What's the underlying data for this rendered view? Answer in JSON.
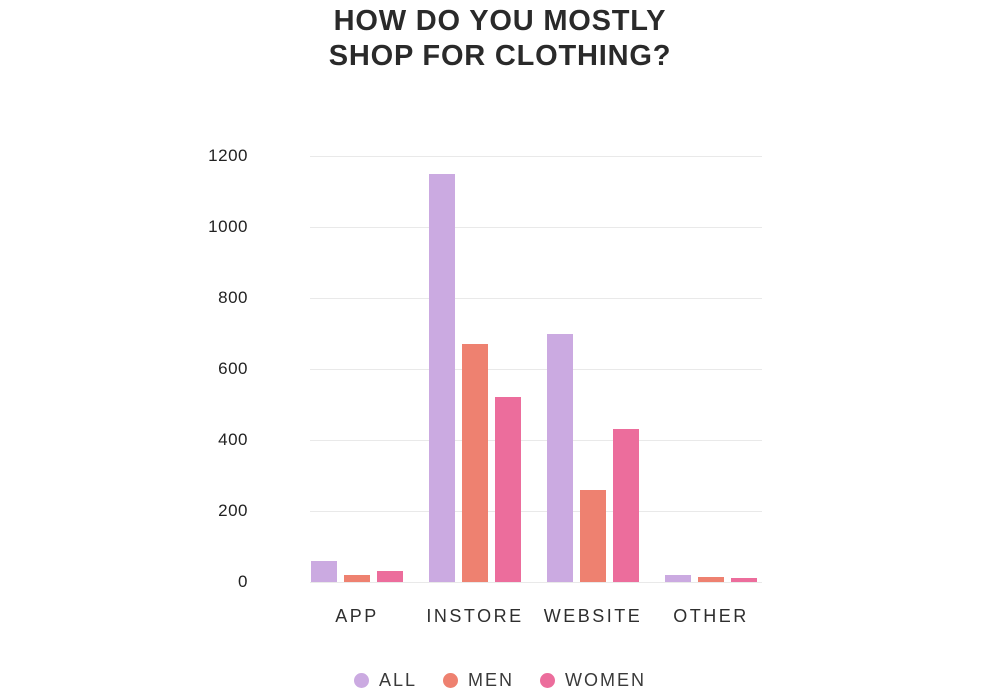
{
  "title_lines": [
    "HOW DO YOU MOSTLY",
    "SHOP FOR CLOTHING?"
  ],
  "colors": {
    "all": "#cbaae1",
    "men": "#ee8170",
    "women": "#ec6d9c",
    "gridline": "#e9e9e9",
    "title_text": "#2a2a2a",
    "axis_text": "#222222"
  },
  "chart_data": {
    "type": "bar",
    "title": "HOW DO YOU MOSTLY SHOP FOR CLOTHING?",
    "categories": [
      "APP",
      "INSTORE",
      "WEBSITE",
      "OTHER"
    ],
    "series": [
      {
        "name": "ALL",
        "color": "#cbaae1",
        "values": [
          60,
          1150,
          700,
          20
        ]
      },
      {
        "name": "MEN",
        "color": "#ee8170",
        "values": [
          20,
          670,
          260,
          15
        ]
      },
      {
        "name": "WOMEN",
        "color": "#ec6d9c",
        "values": [
          30,
          520,
          430,
          10
        ]
      }
    ],
    "xlabel": "",
    "ylabel": "",
    "ylim": [
      0,
      1200
    ],
    "y_ticks": [
      0,
      200,
      400,
      600,
      800,
      1000,
      1200
    ],
    "grid": true,
    "legend_position": "bottom"
  }
}
